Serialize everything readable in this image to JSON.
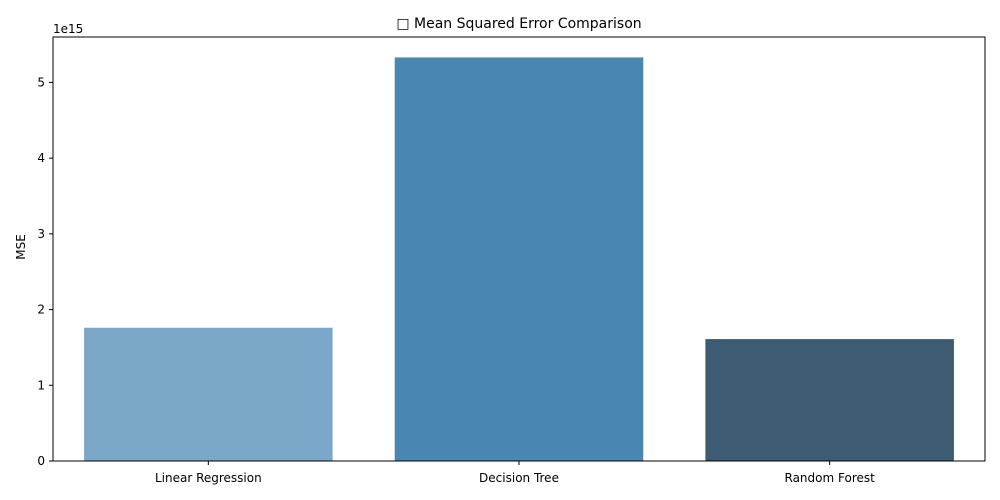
{
  "chart_data": {
    "type": "bar",
    "title": "□ Mean Squared Error Comparison",
    "xlabel": "",
    "ylabel": "MSE",
    "offset_text": "1e15",
    "categories": [
      "Linear Regression",
      "Decision Tree",
      "Random Forest"
    ],
    "values": [
      1760000000000000.0,
      5330000000000000.0,
      1610000000000000.0
    ],
    "colors": [
      "#7ba7c8",
      "#4a86b2",
      "#3d5b73"
    ],
    "ylim": [
      0,
      5600000000000000.0
    ],
    "yticks": [
      0,
      1000000000000000.0,
      2000000000000000.0,
      3000000000000000.0,
      4000000000000000.0,
      5000000000000000.0
    ],
    "ytick_labels": [
      "0",
      "1",
      "2",
      "3",
      "4",
      "5"
    ],
    "grid": false,
    "legend": false
  }
}
